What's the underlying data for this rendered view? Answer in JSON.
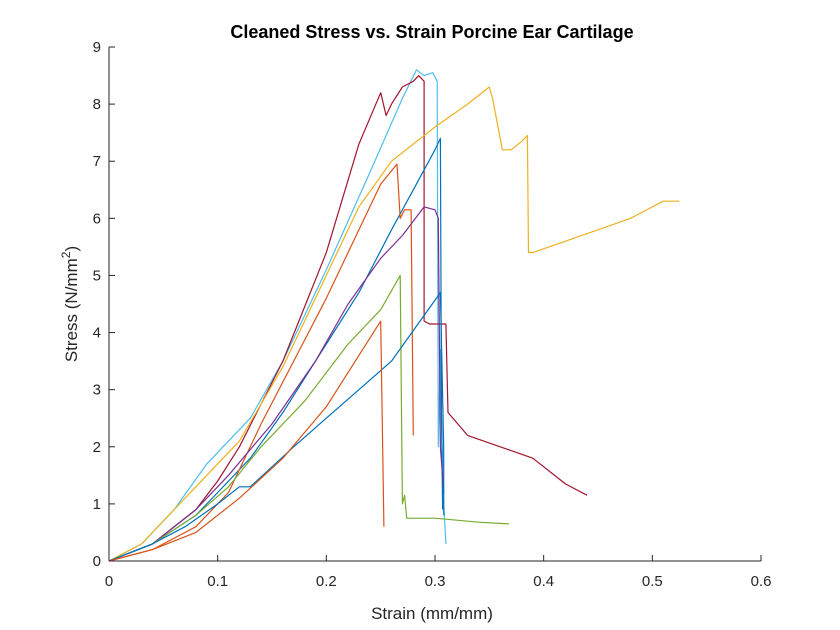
{
  "chart_data": {
    "type": "line",
    "title": "Cleaned Stress vs. Strain Porcine Ear Cartilage",
    "xlabel": "Strain (mm/mm)",
    "ylabel_main": "Stress (N/mm",
    "ylabel_sup": "2",
    "ylabel_close": ")",
    "xlim": [
      0,
      0.6
    ],
    "ylim": [
      0,
      9
    ],
    "xticks": [
      0,
      0.1,
      0.2,
      0.3,
      0.4,
      0.5,
      0.6
    ],
    "xtick_labels": [
      "0",
      "0.1",
      "0.2",
      "0.3",
      "0.4",
      "0.5",
      "0.6"
    ],
    "yticks": [
      0,
      1,
      2,
      3,
      4,
      5,
      6,
      7,
      8,
      9
    ],
    "ytick_labels": [
      "0",
      "1",
      "2",
      "3",
      "4",
      "5",
      "6",
      "7",
      "8",
      "9"
    ],
    "grid": false,
    "series": [
      {
        "color": "#4DBEEE",
        "points": [
          [
            0,
            0
          ],
          [
            0.03,
            0.3
          ],
          [
            0.06,
            0.9
          ],
          [
            0.09,
            1.7
          ],
          [
            0.11,
            2.1
          ],
          [
            0.13,
            2.5
          ],
          [
            0.16,
            3.5
          ],
          [
            0.2,
            5.1
          ],
          [
            0.24,
            6.8
          ],
          [
            0.27,
            8.1
          ],
          [
            0.283,
            8.6
          ],
          [
            0.29,
            8.5
          ],
          [
            0.298,
            8.55
          ],
          [
            0.302,
            8.4
          ],
          [
            0.303,
            2.0
          ],
          [
            0.305,
            3.7
          ],
          [
            0.306,
            2.5
          ],
          [
            0.308,
            1.0
          ],
          [
            0.31,
            0.3
          ]
        ]
      },
      {
        "color": "#A2142F",
        "points": [
          [
            0,
            0
          ],
          [
            0.04,
            0.3
          ],
          [
            0.08,
            0.9
          ],
          [
            0.1,
            1.4
          ],
          [
            0.12,
            2.0
          ],
          [
            0.16,
            3.5
          ],
          [
            0.2,
            5.4
          ],
          [
            0.23,
            7.3
          ],
          [
            0.25,
            8.2
          ],
          [
            0.255,
            7.8
          ],
          [
            0.26,
            8.0
          ],
          [
            0.27,
            8.3
          ],
          [
            0.28,
            8.4
          ],
          [
            0.285,
            8.5
          ],
          [
            0.29,
            8.4
          ],
          [
            0.29,
            4.2
          ],
          [
            0.295,
            4.15
          ],
          [
            0.31,
            4.15
          ],
          [
            0.312,
            2.6
          ],
          [
            0.33,
            2.2
          ],
          [
            0.36,
            2.0
          ],
          [
            0.39,
            1.8
          ],
          [
            0.42,
            1.35
          ],
          [
            0.44,
            1.15
          ]
        ]
      },
      {
        "color": "#EDB120",
        "points": [
          [
            0,
            0
          ],
          [
            0.03,
            0.3
          ],
          [
            0.06,
            0.9
          ],
          [
            0.09,
            1.5
          ],
          [
            0.12,
            2.1
          ],
          [
            0.16,
            3.4
          ],
          [
            0.2,
            5.0
          ],
          [
            0.23,
            6.2
          ],
          [
            0.26,
            7.0
          ],
          [
            0.3,
            7.6
          ],
          [
            0.33,
            8.0
          ],
          [
            0.35,
            8.3
          ],
          [
            0.353,
            8.1
          ],
          [
            0.358,
            7.6
          ],
          [
            0.362,
            7.2
          ],
          [
            0.37,
            7.2
          ],
          [
            0.38,
            7.35
          ],
          [
            0.385,
            7.45
          ],
          [
            0.386,
            5.4
          ],
          [
            0.39,
            5.4
          ],
          [
            0.42,
            5.6
          ],
          [
            0.45,
            5.8
          ],
          [
            0.48,
            6.0
          ],
          [
            0.51,
            6.3
          ],
          [
            0.525,
            6.3
          ]
        ]
      },
      {
        "color": "#0072BD",
        "points": [
          [
            0,
            0
          ],
          [
            0.04,
            0.3
          ],
          [
            0.08,
            0.8
          ],
          [
            0.1,
            1.2
          ],
          [
            0.13,
            1.8
          ],
          [
            0.16,
            2.6
          ],
          [
            0.2,
            3.8
          ],
          [
            0.23,
            4.7
          ],
          [
            0.26,
            5.8
          ],
          [
            0.28,
            6.5
          ],
          [
            0.3,
            7.2
          ],
          [
            0.305,
            7.4
          ],
          [
            0.306,
            2.5
          ],
          [
            0.307,
            0.9
          ]
        ]
      },
      {
        "color": "#D95319",
        "points": [
          [
            0,
            0
          ],
          [
            0.04,
            0.2
          ],
          [
            0.08,
            0.6
          ],
          [
            0.11,
            1.2
          ],
          [
            0.14,
            2.4
          ],
          [
            0.17,
            3.5
          ],
          [
            0.2,
            4.6
          ],
          [
            0.23,
            5.8
          ],
          [
            0.25,
            6.6
          ],
          [
            0.265,
            6.95
          ],
          [
            0.268,
            6.0
          ],
          [
            0.272,
            6.15
          ],
          [
            0.278,
            6.15
          ],
          [
            0.28,
            2.2
          ]
        ]
      },
      {
        "color": "#7E2F8E",
        "points": [
          [
            0,
            0
          ],
          [
            0.04,
            0.3
          ],
          [
            0.08,
            0.9
          ],
          [
            0.11,
            1.5
          ],
          [
            0.15,
            2.4
          ],
          [
            0.19,
            3.5
          ],
          [
            0.22,
            4.5
          ],
          [
            0.25,
            5.3
          ],
          [
            0.27,
            5.7
          ],
          [
            0.29,
            6.2
          ],
          [
            0.3,
            6.15
          ],
          [
            0.303,
            6.0
          ],
          [
            0.305,
            2.0
          ],
          [
            0.308,
            1.2
          ]
        ]
      },
      {
        "color": "#77AC30",
        "points": [
          [
            0,
            0
          ],
          [
            0.04,
            0.3
          ],
          [
            0.08,
            0.8
          ],
          [
            0.11,
            1.3
          ],
          [
            0.14,
            2.0
          ],
          [
            0.18,
            2.8
          ],
          [
            0.22,
            3.8
          ],
          [
            0.25,
            4.4
          ],
          [
            0.268,
            5.0
          ],
          [
            0.27,
            1.0
          ],
          [
            0.272,
            1.15
          ],
          [
            0.274,
            0.75
          ],
          [
            0.3,
            0.75
          ],
          [
            0.34,
            0.68
          ],
          [
            0.368,
            0.65
          ]
        ]
      },
      {
        "color": "#0072BD",
        "points": [
          [
            0,
            0
          ],
          [
            0.04,
            0.3
          ],
          [
            0.07,
            0.6
          ],
          [
            0.1,
            1.0
          ],
          [
            0.12,
            1.3
          ],
          [
            0.13,
            1.3
          ],
          [
            0.17,
            2.0
          ],
          [
            0.2,
            2.5
          ],
          [
            0.23,
            3.0
          ],
          [
            0.26,
            3.5
          ],
          [
            0.29,
            4.3
          ],
          [
            0.305,
            4.7
          ],
          [
            0.308,
            2.0
          ],
          [
            0.308,
            0.8
          ]
        ]
      },
      {
        "color": "#D95319",
        "points": [
          [
            0,
            0
          ],
          [
            0.04,
            0.2
          ],
          [
            0.08,
            0.5
          ],
          [
            0.12,
            1.1
          ],
          [
            0.16,
            1.8
          ],
          [
            0.2,
            2.7
          ],
          [
            0.23,
            3.6
          ],
          [
            0.25,
            4.2
          ],
          [
            0.253,
            0.6
          ]
        ]
      }
    ]
  }
}
